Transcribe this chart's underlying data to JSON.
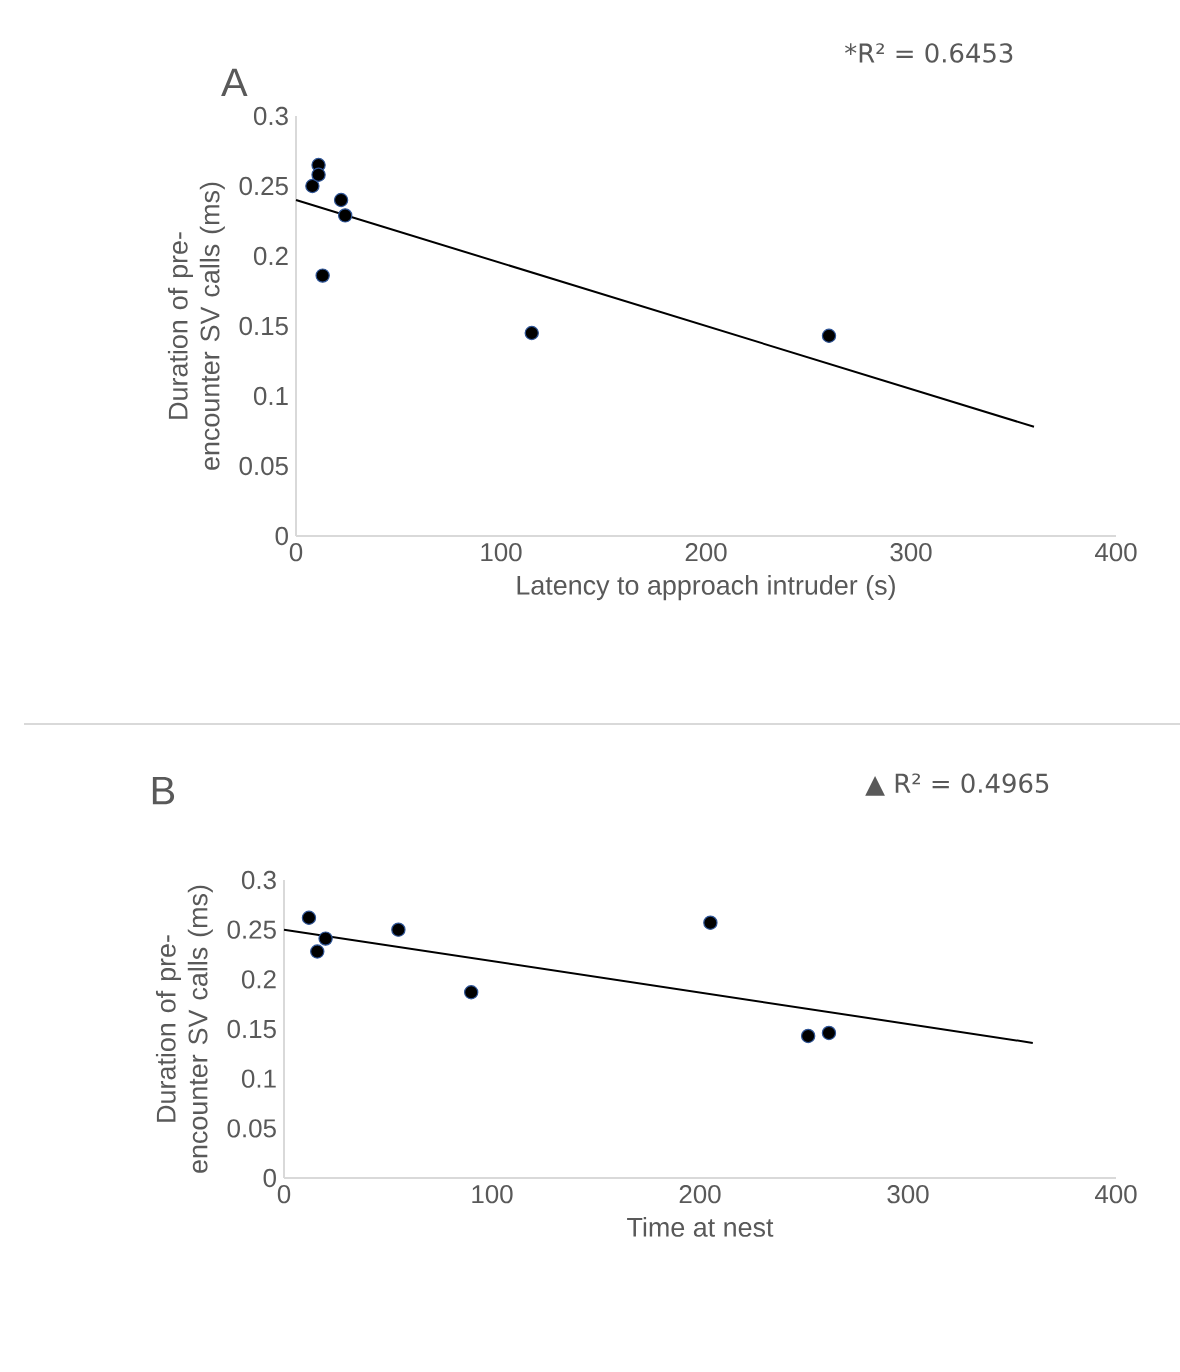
{
  "chart_data": [
    {
      "type": "scatter",
      "title": "A",
      "xlabel": "Latency to approach intruder (s)",
      "ylabel": "Duration of pre-encounter SV calls (ms)",
      "annotations": [
        "*R² = 0.6453"
      ],
      "xlim": [
        0,
        400
      ],
      "ylim": [
        0,
        0.3
      ],
      "xticks": [
        0,
        100,
        200,
        300,
        400
      ],
      "yticks": [
        0,
        0.05,
        0.1,
        0.15,
        0.2,
        0.25,
        0.3
      ],
      "grid": false,
      "series": [
        {
          "type": "scatter",
          "marker": "circle",
          "color": "#000000",
          "x": [
            8,
            11,
            11,
            13,
            22,
            24,
            115,
            260
          ],
          "values": [
            0.25,
            0.265,
            0.258,
            0.186,
            0.24,
            0.229,
            0.145,
            0.143
          ]
        },
        {
          "type": "line",
          "marker": "none",
          "color": "#000000",
          "line_style": "solid",
          "x": [
            0,
            360
          ],
          "values": [
            0.24,
            0.078
          ]
        }
      ]
    },
    {
      "type": "scatter",
      "title": "B",
      "xlabel": "Time at nest",
      "ylabel": "Duration of pre-encounter SV calls (ms)",
      "annotations": [
        "▲ R² = 0.4965"
      ],
      "xlim": [
        0,
        400
      ],
      "ylim": [
        0,
        0.3
      ],
      "xticks": [
        0,
        100,
        200,
        300,
        400
      ],
      "yticks": [
        0,
        0.05,
        0.1,
        0.15,
        0.2,
        0.25,
        0.3
      ],
      "grid": false,
      "series": [
        {
          "type": "scatter",
          "marker": "circle",
          "color": "#000000",
          "x": [
            12,
            16,
            20,
            55,
            90,
            205,
            252,
            262
          ],
          "values": [
            0.262,
            0.228,
            0.241,
            0.25,
            0.187,
            0.257,
            0.143,
            0.146
          ]
        },
        {
          "type": "line",
          "marker": "none",
          "color": "#000000",
          "line_style": "solid",
          "x": [
            0,
            360
          ],
          "values": [
            0.25,
            0.136
          ]
        }
      ]
    }
  ]
}
